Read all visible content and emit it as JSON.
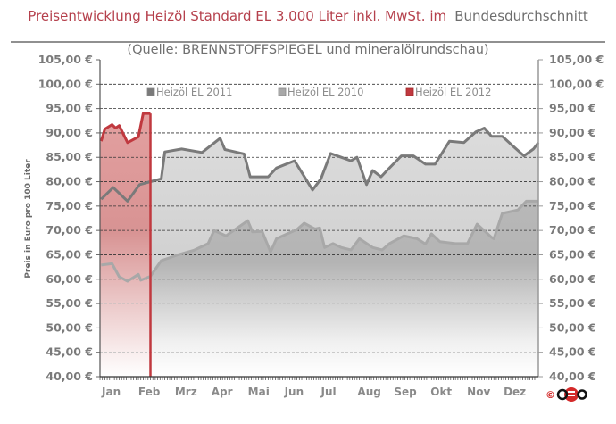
{
  "chart_data": {
    "type": "area",
    "title_main": "Preisentwicklung Heizöl Standard EL 3.000 Liter inkl. MwSt. im",
    "title_tail": "Bundesdurchschnitt",
    "subtitle": "(Quelle: BRENNSTOFFSPIEGEL  und mineralölrundschau)",
    "ylabel": "Preis in Euro pro 100 Liter",
    "xlabel": "",
    "xlim": [
      0,
      365
    ],
    "ylim": [
      40,
      105
    ],
    "ystep": 5,
    "ytick_suffix": " €",
    "months": [
      "Jan",
      "Feb",
      "Mrz",
      "Apr",
      "Mai",
      "Jun",
      "Jul",
      "Aug",
      "Sep",
      "Okt",
      "Nov",
      "Dez"
    ],
    "legend_position": "top",
    "grid": "dashed-horizontal",
    "copyright": "©",
    "logo": "CEO",
    "series": [
      {
        "name": "Heizöl EL 2011",
        "color": "#7a7a7a",
        "x": [
          1,
          11,
          23,
          33,
          42,
          51,
          54,
          68,
          85,
          100,
          104,
          120,
          125,
          140,
          147,
          162,
          177,
          184,
          192,
          209,
          214,
          222,
          227,
          234,
          239,
          251,
          261,
          271,
          279,
          291,
          303,
          313,
          320,
          326,
          335,
          343,
          353,
          361,
          365
        ],
        "y": [
          76.4,
          78.8,
          76,
          79.4,
          80,
          80.6,
          86.1,
          86.7,
          86,
          88.9,
          86.6,
          85.7,
          81,
          81,
          82.8,
          84.3,
          78.3,
          80.6,
          85.8,
          84.3,
          85,
          79.4,
          82.3,
          81,
          82.3,
          85.3,
          85.3,
          83.6,
          83.6,
          88.3,
          88,
          90.2,
          91,
          89.3,
          89.3,
          87.5,
          85.3,
          86.7,
          88
        ]
      },
      {
        "name": "Heizöl EL 2010",
        "color": "#a8a8a8",
        "x": [
          1,
          10,
          16,
          23,
          32,
          34,
          42,
          51,
          65,
          78,
          90,
          95,
          105,
          123,
          127,
          135,
          142,
          147,
          164,
          170,
          179,
          183,
          187,
          194,
          201,
          209,
          216,
          227,
          235,
          241,
          253,
          264,
          271,
          276,
          283,
          296,
          306,
          314,
          326,
          328,
          335,
          348,
          355,
          365
        ],
        "y": [
          62.9,
          63.2,
          60.5,
          59.6,
          61,
          59.8,
          60.6,
          63.8,
          65,
          65.9,
          67.3,
          70,
          68.9,
          72,
          69.7,
          69.8,
          65.6,
          68.3,
          70.2,
          71.5,
          70.3,
          70.5,
          66.5,
          67.3,
          66.5,
          66,
          68.3,
          66.5,
          66,
          67.3,
          68.9,
          68.3,
          67.2,
          69.3,
          67.7,
          67.3,
          67.3,
          71.3,
          68.6,
          68.3,
          73.5,
          74.2,
          76,
          76
        ]
      },
      {
        "name": "Heizöl EL 2012",
        "color": "#c0393f",
        "x": [
          1,
          4,
          10,
          13,
          16,
          23,
          32,
          36,
          42
        ],
        "y": [
          88.3,
          90.8,
          91.7,
          91,
          91.5,
          88,
          89.2,
          94,
          94
        ]
      }
    ]
  }
}
